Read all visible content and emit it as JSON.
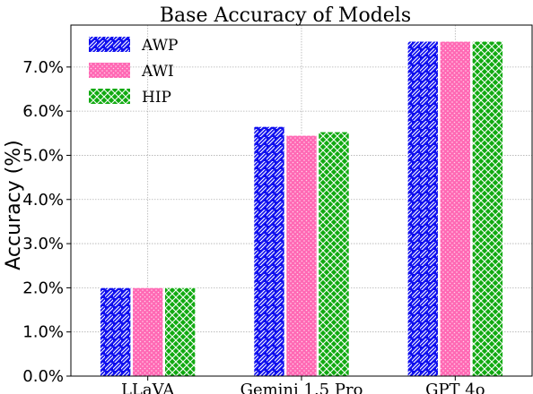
{
  "chart_data": {
    "type": "bar",
    "title": "Base Accuracy of Models",
    "xlabel": "",
    "ylabel": "Accuracy (%)",
    "categories": [
      "LLaVA",
      "Gemini 1.5 Pro",
      "GPT 4o"
    ],
    "series": [
      {
        "name": "AWP",
        "values": [
          2.0,
          5.65,
          7.58
        ],
        "color": "#1010ee",
        "pattern": "diagonal-hatch"
      },
      {
        "name": "AWI",
        "values": [
          2.0,
          5.45,
          7.58
        ],
        "color": "#ff69b4",
        "pattern": "dots"
      },
      {
        "name": "HIP",
        "values": [
          2.0,
          5.53,
          7.58
        ],
        "color": "#11aa11",
        "pattern": "crosshatch"
      }
    ],
    "ylim": [
      0,
      7.95
    ],
    "yticks": [
      0,
      1,
      2,
      3,
      4,
      5,
      6,
      7
    ],
    "ytick_labels": [
      "0.0%",
      "1.0%",
      "2.0%",
      "3.0%",
      "4.0%",
      "5.0%",
      "6.0%",
      "7.0%"
    ],
    "grid": true,
    "legend_position": "top-left"
  }
}
